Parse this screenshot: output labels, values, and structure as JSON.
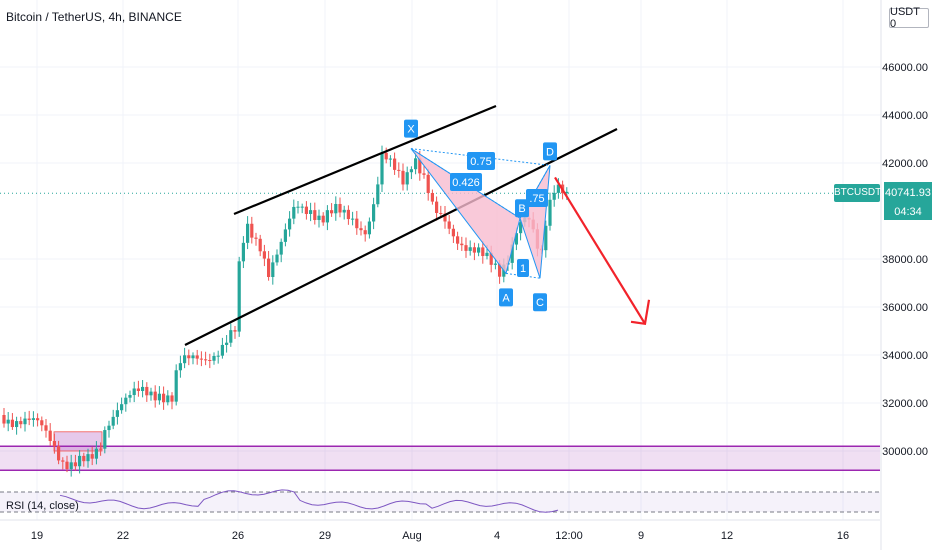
{
  "header": {
    "title": "Bitcoin / TetherUS, 4h, BINANCE",
    "currency": "USDT 0"
  },
  "chart_data": {
    "type": "candlestick",
    "symbol": "BTCUSDT",
    "y_ticks": [
      "46000.00",
      "44000.00",
      "42000.00",
      "38000.00",
      "36000.00",
      "34000.00",
      "32000.00",
      "30000.00"
    ],
    "y_tick_values": [
      46000,
      44000,
      42000,
      38000,
      36000,
      34000,
      32000,
      30000
    ],
    "x_ticks": [
      "19",
      "22",
      "26",
      "29",
      "Aug",
      "4",
      "12:00",
      "9",
      "12",
      "16"
    ],
    "last_price": "40741.93",
    "countdown": "04:34",
    "support_zone": [
      29200,
      30200
    ],
    "pattern_points": [
      {
        "label": "X",
        "price": 42600
      },
      {
        "label": "A",
        "price": 37400
      },
      {
        "label": "B",
        "price": 39700
      },
      {
        "label": "C",
        "price": 37200
      },
      {
        "label": "D",
        "price": 41900
      }
    ],
    "ratios": [
      "0.75",
      "0.426",
      ".75",
      "1"
    ],
    "projection": {
      "from": 41400,
      "to": 35300
    },
    "rsi": {
      "label": "RSI (14, close)"
    }
  },
  "colors": {
    "up": "#26a69a",
    "down": "#ef5350",
    "pattern": "#f8bbd0",
    "zone": "#9c27b0",
    "arrow": "#f2232b",
    "label": "#2196f3"
  }
}
